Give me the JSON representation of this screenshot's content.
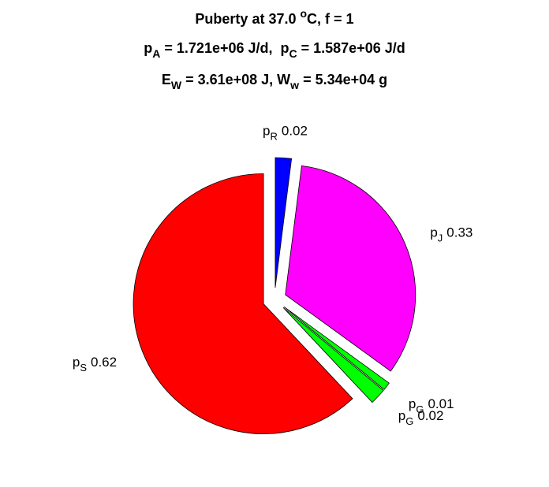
{
  "chart_data": {
    "type": "pie",
    "title": [
      [
        {
          "text": "Puberty at 37.0 "
        },
        {
          "sup": "o"
        },
        {
          "text": "C, f = 1"
        }
      ],
      [
        {
          "text": "p"
        },
        {
          "sub": "A"
        },
        {
          "text": " = 1.721e+06 J/d,  p"
        },
        {
          "sub": "C"
        },
        {
          "text": " = 1.587e+06 J/d"
        }
      ],
      [
        {
          "text": "E"
        },
        {
          "sub": "W"
        },
        {
          "text": " = 3.61e+08 J, W"
        },
        {
          "sub": "w"
        },
        {
          "text": " = 5.34e+04 g"
        }
      ]
    ],
    "labels": [
      {
        "symbol": "p",
        "subscript": "R"
      },
      {
        "symbol": "p",
        "subscript": "J"
      },
      {
        "symbol": "p",
        "subscript": "G"
      },
      {
        "symbol": "p",
        "subscript": "G"
      },
      {
        "symbol": "p",
        "subscript": "S"
      }
    ],
    "values": [
      0.02,
      0.33,
      0.01,
      0.02,
      0.62
    ],
    "colors": [
      "#0000ff",
      "#ff00ff",
      "#00ff00",
      "#00ff00",
      "#ff0000"
    ],
    "exploded": true
  }
}
